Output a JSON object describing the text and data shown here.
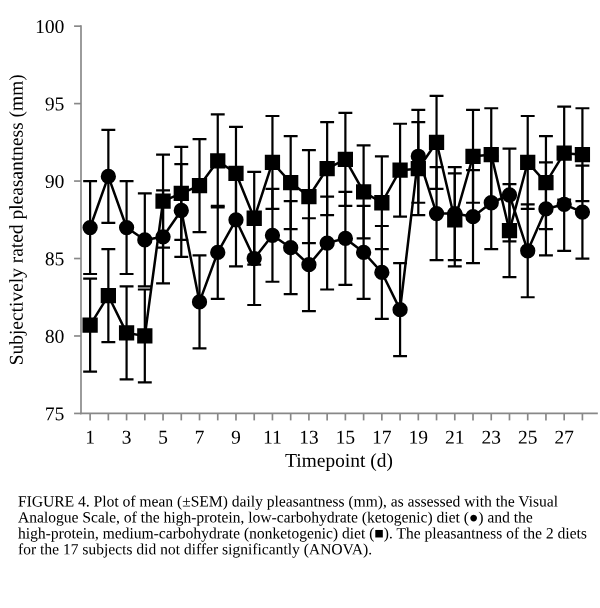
{
  "chart_data": {
    "type": "line",
    "xlabel": "Timepoint (d)",
    "ylabel": "Subjectively rated pleasantness (mm)",
    "x": [
      1,
      2,
      3,
      4,
      5,
      6,
      7,
      8,
      9,
      10,
      11,
      12,
      13,
      14,
      15,
      16,
      17,
      18,
      19,
      20,
      21,
      22,
      23,
      24,
      25,
      26,
      27,
      28
    ],
    "series": [
      {
        "color": "#000000",
        "marker": "circle",
        "values": [
          87.0,
          90.3,
          87.0,
          86.2,
          86.4,
          88.1,
          82.2,
          85.4,
          87.5,
          85.0,
          86.5,
          85.7,
          84.6,
          86.0,
          86.3,
          85.4,
          84.1,
          81.7,
          91.6,
          87.9,
          87.9,
          87.7,
          88.6,
          89.1,
          85.5,
          88.2,
          88.5,
          88.0
        ],
        "errors": [
          3,
          3,
          3,
          3,
          3,
          3,
          3,
          3,
          3,
          3,
          3,
          3,
          3,
          3,
          3,
          3,
          3,
          3,
          3,
          3,
          3,
          3,
          3,
          3,
          3,
          3,
          3,
          3
        ]
      },
      {
        "color": "#000000",
        "marker": "square",
        "values": [
          80.7,
          82.6,
          80.2,
          80.0,
          88.7,
          89.2,
          89.7,
          91.3,
          90.5,
          87.6,
          91.2,
          89.9,
          89.0,
          90.8,
          91.4,
          89.3,
          88.6,
          90.7,
          90.8,
          92.5,
          87.5,
          91.6,
          91.7,
          86.8,
          91.2,
          89.9,
          91.8,
          91.7
        ],
        "errors": [
          3,
          3,
          3,
          3,
          3,
          3,
          3,
          3,
          3,
          3,
          3,
          3,
          3,
          3,
          3,
          3,
          3,
          3,
          3,
          3,
          3,
          3,
          3,
          3,
          3,
          3,
          3,
          3
        ]
      }
    ],
    "xlim": [
      0.5,
      28.8
    ],
    "ylim": [
      75,
      100
    ],
    "xticks": [
      1,
      {
        "value": 2,
        "label": null
      },
      3,
      {
        "value": 4,
        "label": null
      },
      5,
      {
        "value": 6,
        "label": null
      },
      7,
      {
        "value": 8,
        "label": null
      },
      9,
      {
        "value": 10,
        "label": null
      },
      11,
      {
        "value": 12,
        "label": null
      },
      13,
      {
        "value": 14,
        "label": null
      },
      15,
      {
        "value": 16,
        "label": null
      },
      17,
      {
        "value": 18,
        "label": null
      },
      19,
      {
        "value": 20,
        "label": null
      },
      21,
      {
        "value": 22,
        "label": null
      },
      23,
      {
        "value": 24,
        "label": null
      },
      25,
      {
        "value": 26,
        "label": null
      },
      27,
      {
        "value": 28,
        "label": null
      }
    ],
    "yticks": [
      75,
      80,
      85,
      90,
      95,
      100
    ],
    "grid": false,
    "legend": false,
    "line_style": "solid",
    "annotations": [
      "FIGURE 4. Plot of mean (±SEM) daily pleasantness (mm), as assessed with the Visual Analogue Scale, of the high-protein, low-carbohydrate (ketogenic) diet (●) and the high-protein, medium-carbohydrate (nonketogenic) diet (■). The pleasantness of the 2 diets for the 17 subjects did not differ significantly (ANOVA)."
    ]
  }
}
